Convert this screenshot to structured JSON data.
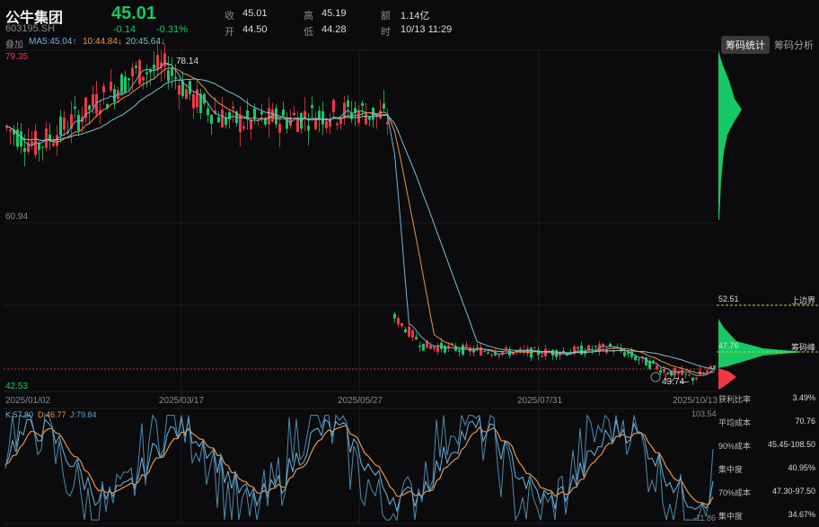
{
  "header": {
    "name": "公牛集团",
    "code": "603195.SH",
    "price": "45.01",
    "change": "-0.14",
    "change_pct": "-0.31%",
    "quotes": [
      {
        "label": "收",
        "value": "45.01"
      },
      {
        "label": "开",
        "value": "44.50"
      },
      {
        "label": "高",
        "value": "45.19"
      },
      {
        "label": "低",
        "value": "44.28"
      },
      {
        "label": "额",
        "value": "1.14亿"
      },
      {
        "label": "时",
        "value": "10/13 11:29"
      }
    ]
  },
  "indicators": {
    "overlay_label": "叠加",
    "ma5": "MA5:45.04↑",
    "ma10": "10:44.84↓",
    "ma20": "20:45.64↓",
    "kdj": {
      "k": "K:57.80",
      "d": "D:46.77",
      "j": "J:79.84"
    }
  },
  "tabs": [
    {
      "label": "筹码统计",
      "active": true
    },
    {
      "label": "筹码分析",
      "active": false
    }
  ],
  "chart": {
    "y_top": "79.35",
    "y_mid": "60.94",
    "y_bottom": "42.53",
    "high_marker": "78.14",
    "low_marker": "43.74",
    "dates": [
      "2025/01/02",
      "2025/03/17",
      "2025/05/27",
      "2025/07/31",
      "2025/10/13"
    ],
    "kdj_top": "103.54",
    "kdj_bottom": "-11.86",
    "colors": {
      "up": "#f23645",
      "down": "#17c964",
      "ma5": "#6fb3d9",
      "ma10": "#e8954a",
      "ma20": "#7cc2c4"
    }
  },
  "chips": {
    "upper_bound_value": "52.51",
    "upper_bound_label": "上边界",
    "peak_value": "47.76",
    "peak_label": "筹码峰"
  },
  "stats": [
    {
      "label": "获利比率",
      "value": "3.49%"
    },
    {
      "label": "平均成本",
      "value": "70.76"
    },
    {
      "label": "90%成本",
      "value": "45.45-108.50"
    },
    {
      "label": "集中度",
      "value": "40.95%"
    },
    {
      "label": "70%成本",
      "value": "47.30-97.50"
    },
    {
      "label": "集中度",
      "value": "34.67%"
    }
  ]
}
